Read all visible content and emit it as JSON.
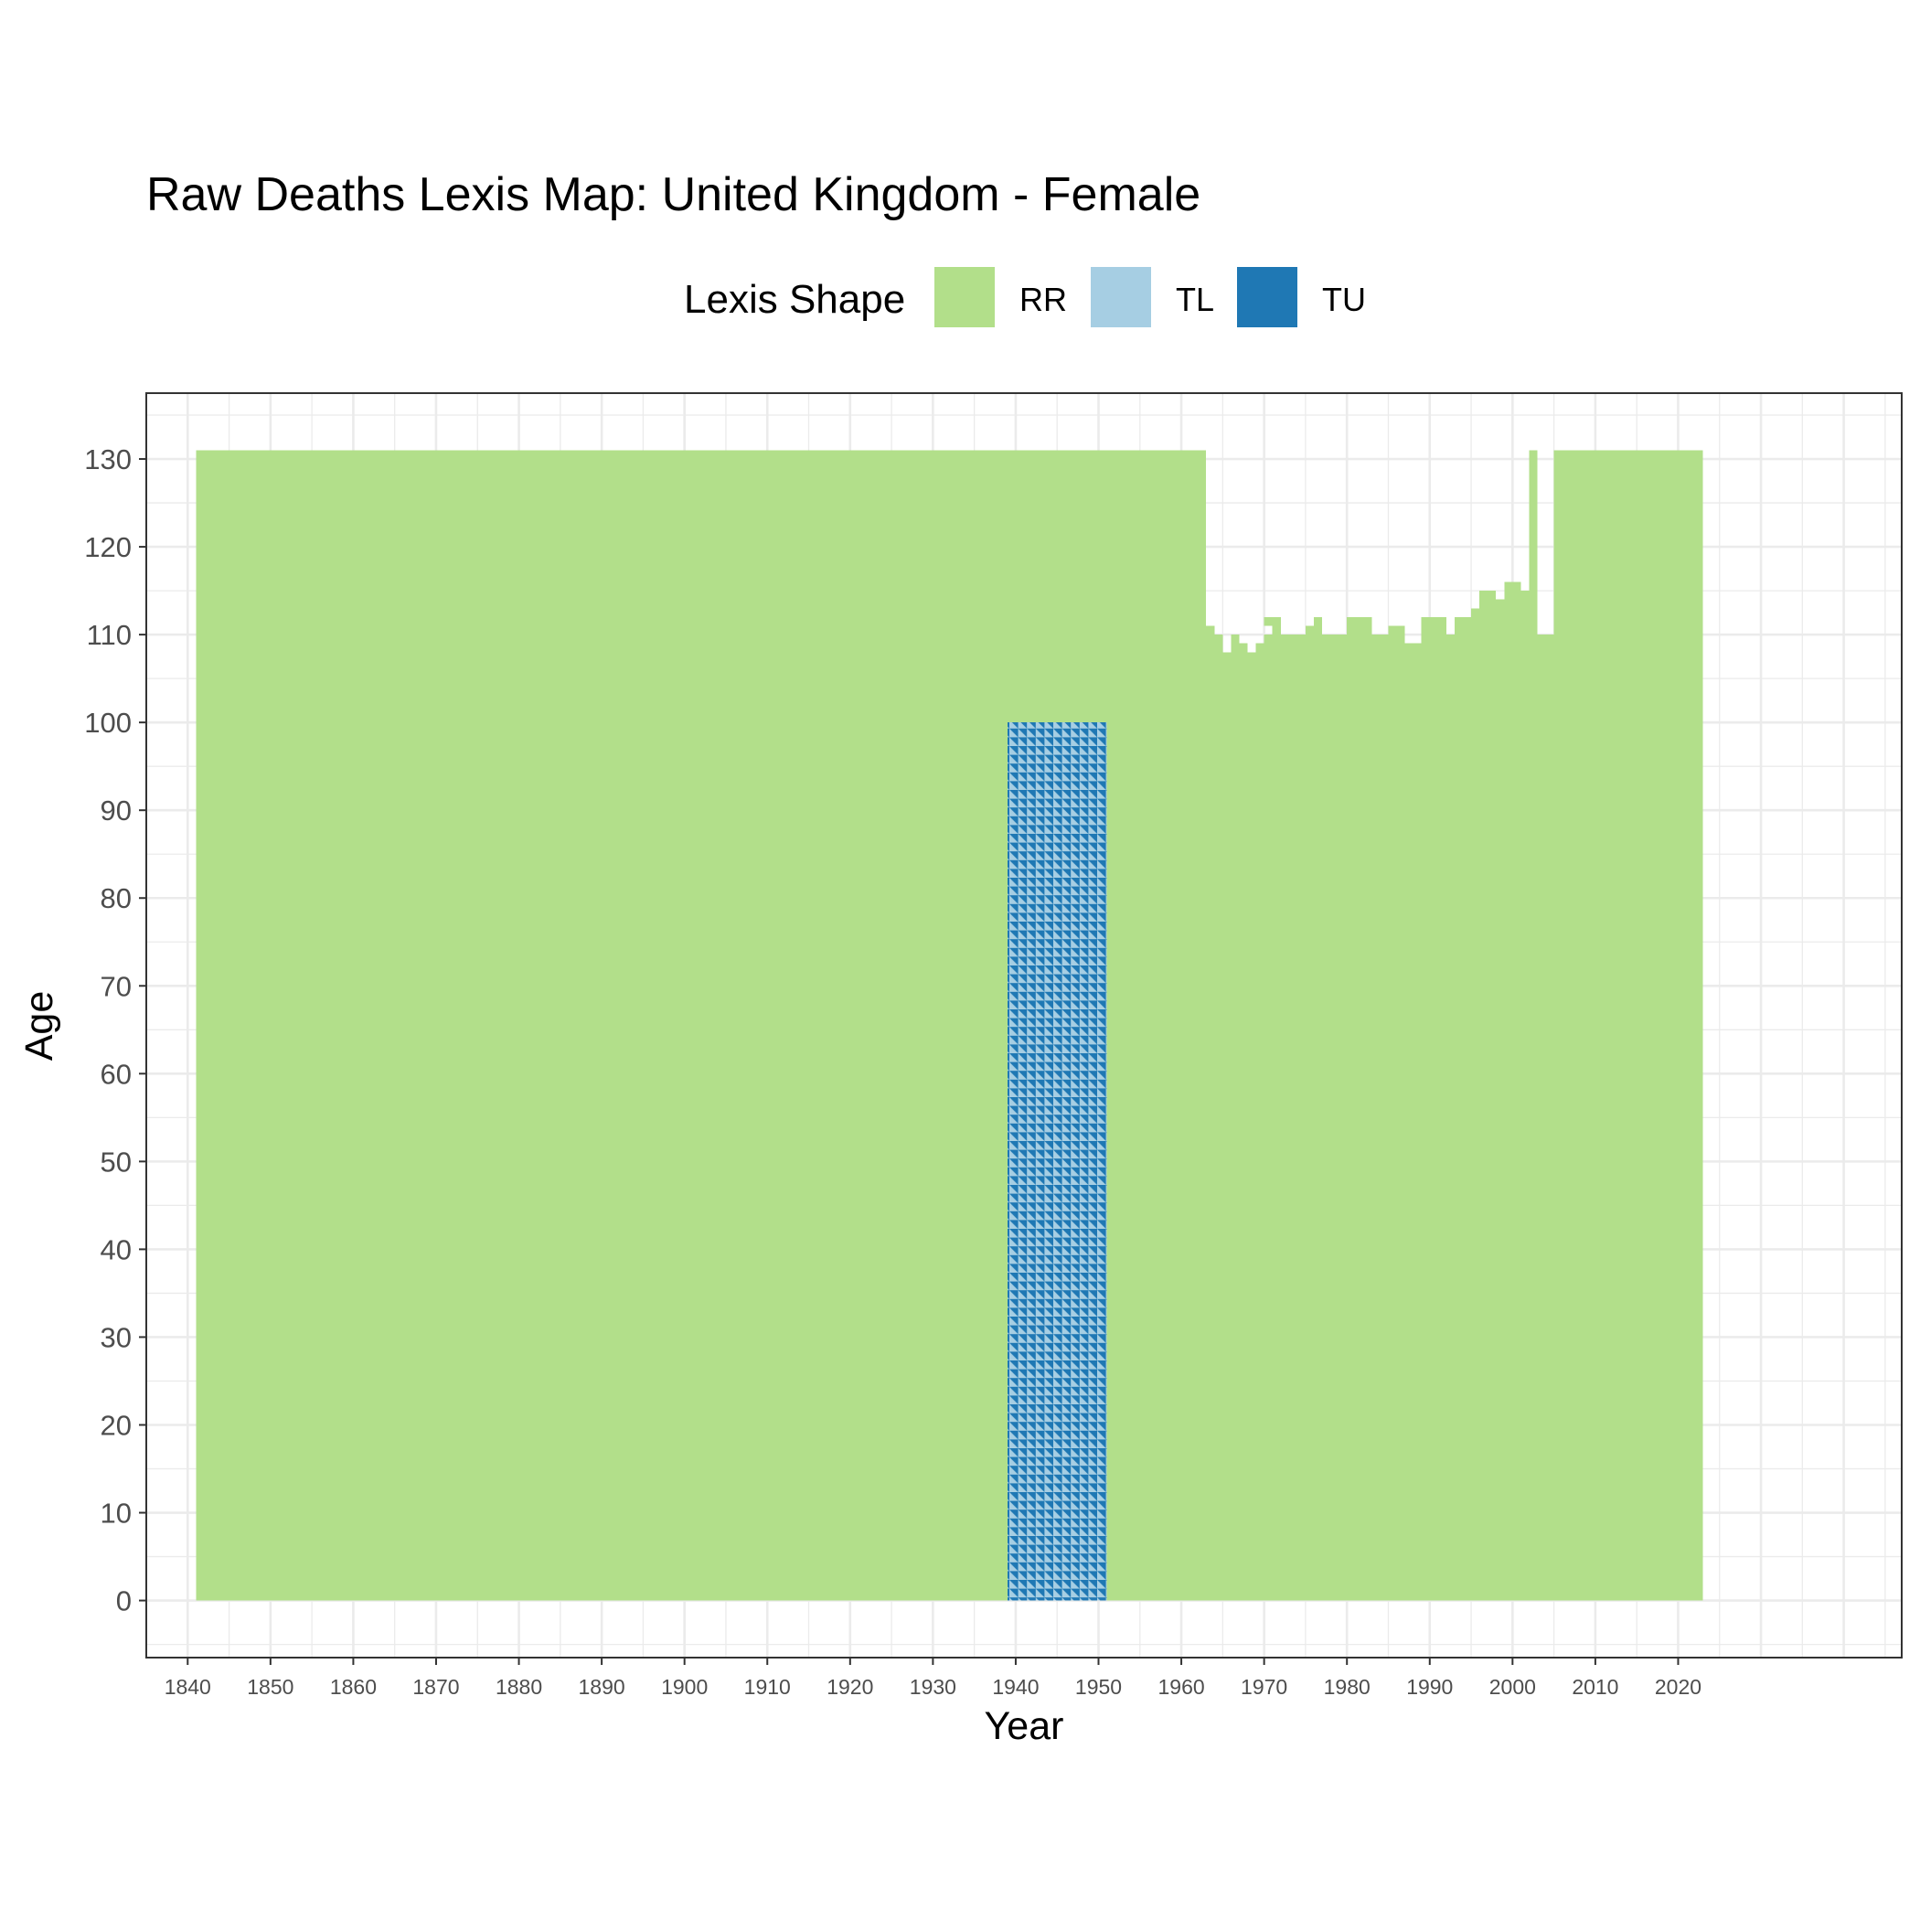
{
  "chart_data": {
    "type": "heatmap",
    "title": "Raw Deaths Lexis Map: United Kingdom - Female",
    "xlabel": "Year",
    "ylabel": "Age",
    "xlim": [
      1835,
      2047
    ],
    "ylim": [
      -6.5,
      137.5
    ],
    "x_ticks": [
      1840,
      1850,
      1860,
      1870,
      1880,
      1890,
      1900,
      1910,
      1920,
      1930,
      1940,
      1950,
      1960,
      1970,
      1980,
      1990,
      2000,
      2010,
      2020
    ],
    "y_ticks": [
      0,
      10,
      20,
      30,
      40,
      50,
      60,
      70,
      80,
      90,
      100,
      110,
      120,
      130
    ],
    "grid": true,
    "legend": {
      "title": "Lexis Shape",
      "position": "top",
      "items": [
        {
          "label": "RR",
          "color": "#b2df8a"
        },
        {
          "label": "TL",
          "color": "#a6cee3"
        },
        {
          "label": "TU",
          "color": "#1f78b4"
        }
      ]
    },
    "regions": [
      {
        "shape": "RR",
        "years": [
          1841,
          1938
        ],
        "ages": [
          0,
          130
        ]
      },
      {
        "shape": "TL/TU",
        "years": [
          1939,
          1950
        ],
        "ages": [
          0,
          99
        ]
      },
      {
        "shape": "RR",
        "years": [
          1939,
          1950
        ],
        "ages": [
          100,
          130
        ]
      },
      {
        "shape": "RR",
        "years": [
          1951,
          1962
        ],
        "ages": [
          0,
          130
        ]
      },
      {
        "shape": "RR",
        "years": [
          1963,
          2004
        ],
        "ages": [
          0,
          "max age 107-116 (varies by year)"
        ]
      },
      {
        "shape": "RR",
        "years": [
          2002,
          2002
        ],
        "ages": [
          0,
          130
        ]
      },
      {
        "shape": "RR",
        "years": [
          2005,
          2022
        ],
        "ages": [
          0,
          130
        ]
      }
    ],
    "top_age_by_year_1963_2004": [
      110,
      109,
      107,
      109,
      108,
      107,
      108,
      109,
      111,
      109,
      109,
      109,
      110,
      111,
      109,
      109,
      109,
      111,
      111,
      111,
      109,
      109,
      110,
      110,
      108,
      108,
      111,
      111,
      111,
      109,
      111,
      111,
      112,
      114,
      114,
      113,
      115,
      115,
      114,
      130,
      109,
      109
    ]
  }
}
